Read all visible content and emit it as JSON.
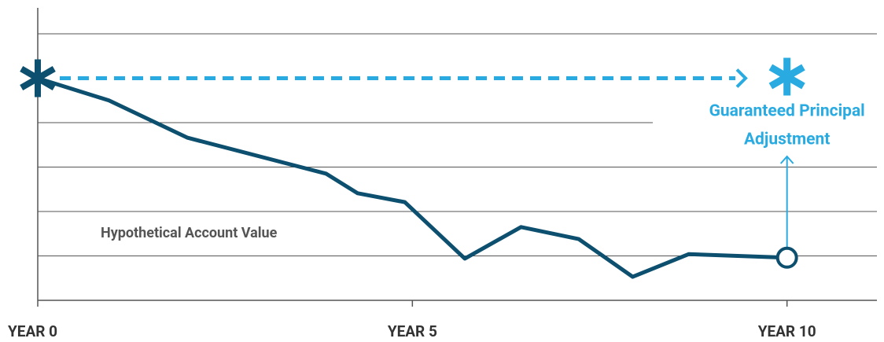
{
  "chart_data": {
    "type": "line",
    "series": [
      {
        "name": "Hypothetical Account Value",
        "color": "#0d4f6e",
        "x": [
          0,
          0.95,
          2.0,
          3.85,
          4.27,
          4.9,
          5.7,
          6.45,
          7.22,
          7.94,
          8.69,
          10
        ],
        "values": [
          5.0,
          4.5,
          3.66,
          2.85,
          2.41,
          2.21,
          0.94,
          1.65,
          1.38,
          0.53,
          1.04,
          0.96
        ]
      }
    ],
    "annotation": {
      "lines": [
        "Guaranteed Principal",
        "Adjustment"
      ],
      "color": "#29abe2"
    },
    "xlim": [
      0,
      11.2
    ],
    "xticks": [
      {
        "value": 0,
        "label": "YEAR 0"
      },
      {
        "value": 5,
        "label": "YEAR 5"
      },
      {
        "value": 10,
        "label": "YEAR 10"
      }
    ],
    "ylim": [
      0,
      6
    ],
    "yticks": [
      1,
      2,
      3,
      4,
      6
    ],
    "grid": true
  }
}
